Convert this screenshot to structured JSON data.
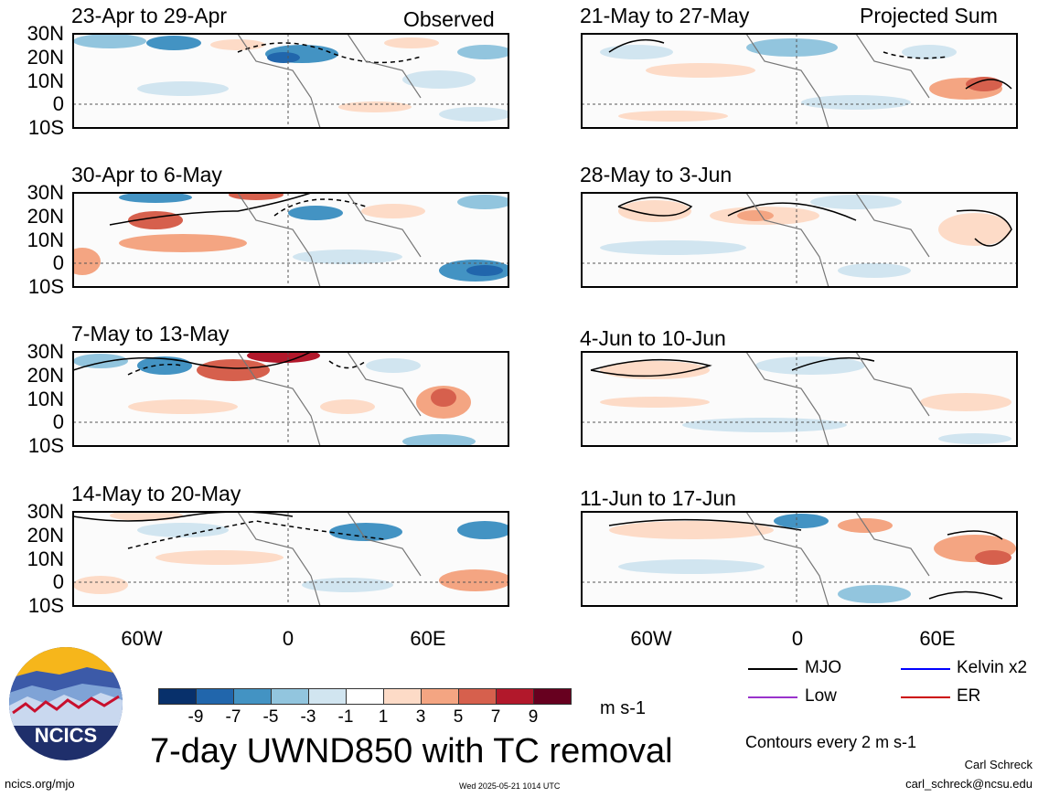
{
  "header": {
    "left_label": "Observed",
    "right_label": "Projected Sum"
  },
  "panels_left": [
    {
      "title": "23-Apr to 29-Apr"
    },
    {
      "title": "30-Apr to 6-May"
    },
    {
      "title": "7-May to 13-May"
    },
    {
      "title": "14-May to 20-May"
    }
  ],
  "panels_right": [
    {
      "title": "21-May to 27-May"
    },
    {
      "title": "28-May to 3-Jun"
    },
    {
      "title": "4-Jun to 10-Jun"
    },
    {
      "title": "11-Jun to 17-Jun"
    }
  ],
  "lat_labels": [
    "30N",
    "20N",
    "10N",
    "0",
    "10S"
  ],
  "lon_labels": [
    "60W",
    "0",
    "60E"
  ],
  "colorbar": {
    "colors": [
      "#08306b",
      "#2166ac",
      "#4393c3",
      "#92c5de",
      "#d1e5f0",
      "#ffffff",
      "#fddbc7",
      "#f4a582",
      "#d6604d",
      "#b2182b",
      "#67001f"
    ],
    "labels": [
      "-9",
      "-7",
      "-5",
      "-3",
      "-1",
      "1",
      "3",
      "5",
      "7",
      "9"
    ],
    "units": "m s-1"
  },
  "main_title": "7-day UWND850 with TC removal",
  "legend": [
    {
      "label": "MJO",
      "color": "#000000"
    },
    {
      "label": "Kelvin x2",
      "color": "#0000ff"
    },
    {
      "label": "Low",
      "color": "#9933cc"
    },
    {
      "label": "ER",
      "color": "#cc0000"
    }
  ],
  "contour_note": "Contours every 2 m s-1",
  "footer": {
    "website": "ncics.org/mjo",
    "timestamp": "Wed 2025-05-21 1014 UTC",
    "author": "Carl Schreck",
    "email": "carl_schreck@ncsu.edu"
  },
  "logo": {
    "text": "NCICS"
  }
}
